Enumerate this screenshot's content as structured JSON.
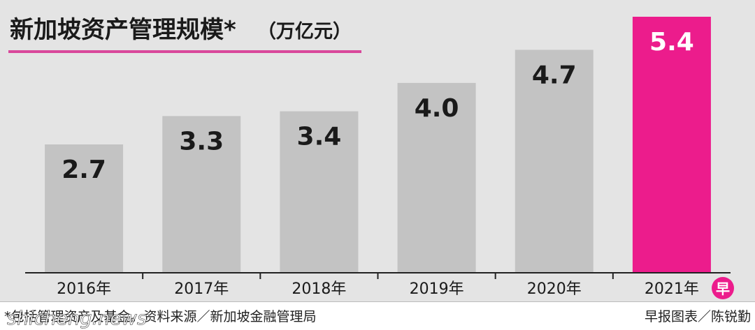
{
  "chart_data": {
    "type": "bar",
    "title": "新加坡资产管理规模*",
    "unit": "（万亿元）",
    "categories": [
      "2016年",
      "2017年",
      "2018年",
      "2019年",
      "2020年",
      "2021年"
    ],
    "values": [
      2.7,
      3.3,
      3.4,
      4.0,
      4.7,
      5.4
    ],
    "value_labels": [
      "2.7",
      "3.3",
      "3.4",
      "4.0",
      "4.7",
      "5.4"
    ],
    "ylim": [
      0,
      5.4
    ],
    "grid": false,
    "legend": "none"
  },
  "colors": {
    "background": "#e4e4e4",
    "bar": "#c3c3c3",
    "highlight_bar": "#ec1c8c",
    "title_underline": "#d9489b",
    "text": "#1a1a1a",
    "highlight_text": "#ffffff",
    "logo": "#ec1c8c"
  },
  "footer": {
    "watermark": "shicheng.news",
    "note": "*包括管理资产及基金。资料来源／新加坡金融管理局",
    "credit": "早报图表／陈锐勤"
  },
  "logo": {
    "glyph": "早",
    "icon": "zaobao-logo-icon"
  }
}
